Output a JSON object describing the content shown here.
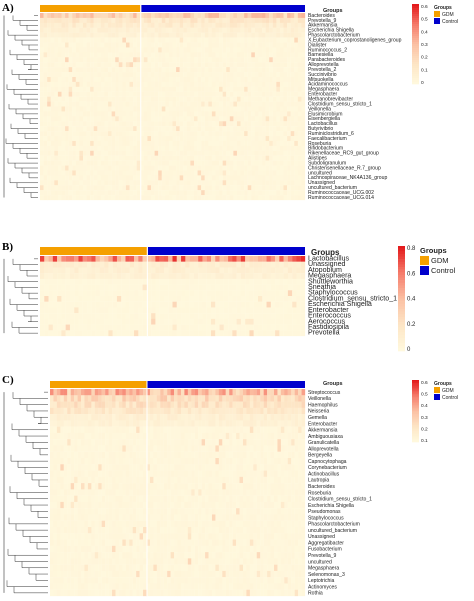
{
  "colors": {
    "gdm": "#f5a000",
    "control": "#0000cc",
    "scale": [
      "#fff8dd",
      "#fde4c4",
      "#fbbfa2",
      "#f57a6a",
      "#e31a1c"
    ]
  },
  "chart_data": [
    {
      "type": "heatmap",
      "panel": "A)",
      "annotation_title": "Groups",
      "legend_title": "Groups",
      "legend_entries": [
        "GDM",
        "Control"
      ],
      "color_scale_ticks": [
        "0.6",
        "0.5",
        "0.4",
        "0.3",
        "0.2",
        "0.1",
        "0"
      ],
      "n_gdm": 28,
      "n_control": 46,
      "rows": [
        "Bacteroides",
        "Prevotella_9",
        "Akkermansia",
        "Escherichia Shigella",
        "Phascolarctobacterium",
        "X.Eubacterium_coprostanoligenes_group",
        "Dialister",
        "Ruminococcus_2",
        "Barnesiella",
        "Parabacteroides",
        "Alloprevotella",
        "Prevotella_2",
        "Succinivibrio",
        "Mitsuokella",
        "Acidaminococcus",
        "Megasphaera",
        "Enterobacter",
        "Methanobrevibacter",
        "Clostridium_sensu_stricto_1",
        "Veillonella",
        "Elusimicrobium",
        "Eisenbergiella",
        "Lactobacillus",
        "Butyrivibrio",
        "Ruminiclostridium_6",
        "Faecalibacterium",
        "Roseburia",
        "Bifidobacterium",
        "Rikenellaceae_RC9_gut_group",
        "Alistipes",
        "Subdoligranulum",
        "Christensenellaceae_R.7_group",
        "uncultured",
        "Lachnospiraceae_NK4A136_group",
        "Unassigned",
        "uncultured_bacterium",
        "Ruminococcaceae_UCG.002",
        "Ruminococcaceae_UCG.014"
      ]
    },
    {
      "type": "heatmap",
      "panel": "B)",
      "annotation_title": "Groups",
      "legend_title": "Groups",
      "legend_entries": [
        "GDM",
        "Control"
      ],
      "color_scale_ticks": [
        "0.8",
        "0.6",
        "0.4",
        "0.2",
        "0"
      ],
      "n_gdm": 25,
      "n_control": 37,
      "rows": [
        "Lactobacillus",
        "Unassigned",
        "Atopobium",
        "Megasphaera",
        "Shuttleworthia",
        "Sneathia",
        "Staphylococcus",
        "Clostridium_sensu_stricto_1",
        "Escherichia Shigella",
        "Enterobacter",
        "Enterococcus",
        "Aerococcus",
        "Fastidiosipila",
        "Prevotella"
      ]
    },
    {
      "type": "heatmap",
      "panel": "C)",
      "annotation_title": "Groups",
      "legend_title": "Groups",
      "legend_entries": [
        "GDM",
        "Control"
      ],
      "color_scale_ticks": [
        "0.6",
        "0.5",
        "0.4",
        "0.3",
        "0.2",
        "0.1"
      ],
      "n_gdm": 28,
      "n_control": 46,
      "rows": [
        "Streptococcus",
        "Veillonella",
        "Haemophilus",
        "Neisseria",
        "Gemella",
        "Enterobacter",
        "Akkermansia",
        "Ambiguousiaxa",
        "Granulicatella",
        "Alloprevotella",
        "Bergeyella",
        "Capnocytophaga",
        "Corynebacterium",
        "Actinobacillus",
        "Lautropia",
        "Bacteroides",
        "Roseburia",
        "Clostridium_sensu_stricto_1",
        "Escherichia Shigella",
        "Pseudomonas",
        "Staphylococcus",
        "Phascolarctobacterium",
        "uncultured_bacterium",
        "Unassigned",
        "Aggregatibacter",
        "Fusobacterium",
        "Prevotella_9",
        "uncultured",
        "Megasphaera",
        "Selenomonas_3",
        "Leptotrichia",
        "Actinomyces",
        "Rothia"
      ]
    }
  ]
}
